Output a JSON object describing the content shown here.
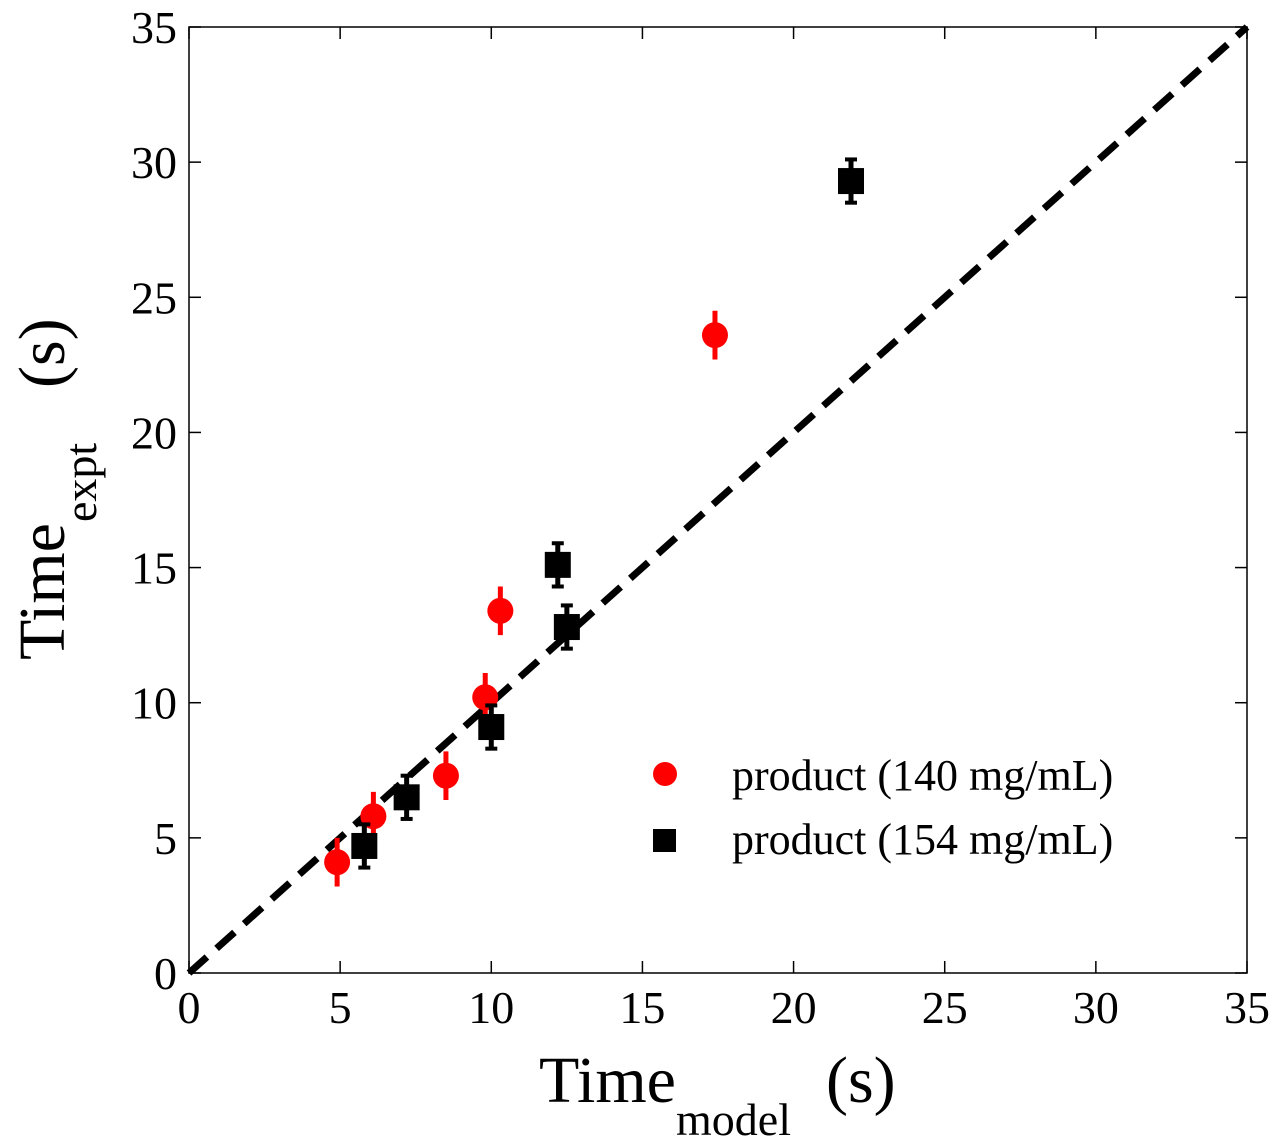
{
  "chart_data": {
    "type": "scatter",
    "title": "",
    "xlabel": {
      "main": "Time",
      "sub": "model",
      "unit": "(s)"
    },
    "ylabel": {
      "main": "Time",
      "sub": "expt",
      "unit": "(s)"
    },
    "xlim": [
      0,
      35
    ],
    "ylim": [
      0,
      35
    ],
    "xticks": [
      0,
      5,
      10,
      15,
      20,
      25,
      30,
      35
    ],
    "yticks": [
      0,
      5,
      10,
      15,
      20,
      25,
      30,
      35
    ],
    "grid": false,
    "legend_position": "lower-right",
    "reference_line": {
      "style": "dashed",
      "color": "#000000",
      "points": [
        [
          0,
          0
        ],
        [
          35,
          35
        ]
      ]
    },
    "series": [
      {
        "name": "product (140 mg/mL)",
        "marker": "circle",
        "color": "#ff0000",
        "points": [
          {
            "x": 4.9,
            "y": 4.1,
            "err": 0.9
          },
          {
            "x": 6.1,
            "y": 5.8,
            "err": 0.9
          },
          {
            "x": 8.5,
            "y": 7.3,
            "err": 0.9
          },
          {
            "x": 9.8,
            "y": 10.2,
            "err": 0.9
          },
          {
            "x": 10.3,
            "y": 13.4,
            "err": 0.9
          },
          {
            "x": 17.4,
            "y": 23.6,
            "err": 0.9
          }
        ]
      },
      {
        "name": "product (154 mg/mL)",
        "marker": "square",
        "color": "#000000",
        "points": [
          {
            "x": 5.8,
            "y": 4.7,
            "err": 0.8
          },
          {
            "x": 7.2,
            "y": 6.5,
            "err": 0.8
          },
          {
            "x": 10.0,
            "y": 9.1,
            "err": 0.8
          },
          {
            "x": 12.2,
            "y": 15.1,
            "err": 0.8
          },
          {
            "x": 12.5,
            "y": 12.8,
            "err": 0.8
          },
          {
            "x": 21.9,
            "y": 29.3,
            "err": 0.8
          }
        ]
      }
    ]
  }
}
